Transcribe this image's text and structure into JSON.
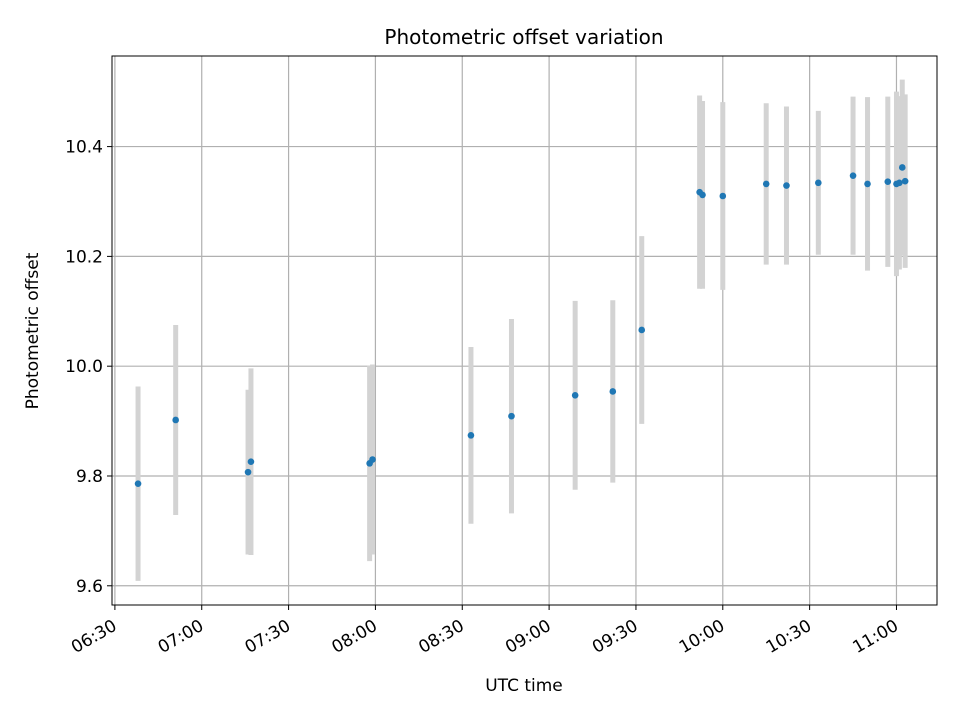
{
  "chart_data": {
    "type": "scatter",
    "title": "Photometric offset variation",
    "xlabel": "UTC time",
    "ylabel": "Photometric offset",
    "x_ticks": [
      "06:30",
      "07:00",
      "07:30",
      "08:00",
      "08:30",
      "09:00",
      "09:30",
      "10:00",
      "10:30",
      "11:00"
    ],
    "y_ticks": [
      "9.6",
      "9.8",
      "10.0",
      "10.2",
      "10.4"
    ],
    "xlim": [
      "06:29",
      "11:14"
    ],
    "ylim": [
      9.565,
      10.565
    ],
    "grid": true,
    "colors": {
      "points": "#1f77b4",
      "errorbars": "#d3d3d3",
      "grid": "#b0b0b0"
    },
    "points": [
      {
        "x": "06:38",
        "y": 9.786,
        "err": 0.177
      },
      {
        "x": "06:51",
        "y": 9.902,
        "err": 0.173
      },
      {
        "x": "07:16",
        "y": 9.807,
        "err": 0.15
      },
      {
        "x": "07:17",
        "y": 9.826,
        "err": 0.17
      },
      {
        "x": "07:58",
        "y": 9.823,
        "err": 0.178
      },
      {
        "x": "07:59",
        "y": 9.83,
        "err": 0.173
      },
      {
        "x": "08:33",
        "y": 9.874,
        "err": 0.161
      },
      {
        "x": "08:47",
        "y": 9.909,
        "err": 0.177
      },
      {
        "x": "09:09",
        "y": 9.947,
        "err": 0.172
      },
      {
        "x": "09:22",
        "y": 9.954,
        "err": 0.166
      },
      {
        "x": "09:32",
        "y": 10.066,
        "err": 0.171
      },
      {
        "x": "09:52",
        "y": 10.317,
        "err": 0.176
      },
      {
        "x": "09:53",
        "y": 10.312,
        "err": 0.171
      },
      {
        "x": "10:00",
        "y": 10.31,
        "err": 0.171
      },
      {
        "x": "10:15",
        "y": 10.332,
        "err": 0.147
      },
      {
        "x": "10:22",
        "y": 10.329,
        "err": 0.144
      },
      {
        "x": "10:33",
        "y": 10.334,
        "err": 0.131
      },
      {
        "x": "10:45",
        "y": 10.347,
        "err": 0.144
      },
      {
        "x": "10:50",
        "y": 10.332,
        "err": 0.158
      },
      {
        "x": "10:57",
        "y": 10.336,
        "err": 0.155
      },
      {
        "x": "11:00",
        "y": 10.332,
        "err": 0.168
      },
      {
        "x": "11:01",
        "y": 10.334,
        "err": 0.158
      },
      {
        "x": "11:02",
        "y": 10.362,
        "err": 0.16
      },
      {
        "x": "11:03",
        "y": 10.337,
        "err": 0.158
      }
    ]
  }
}
